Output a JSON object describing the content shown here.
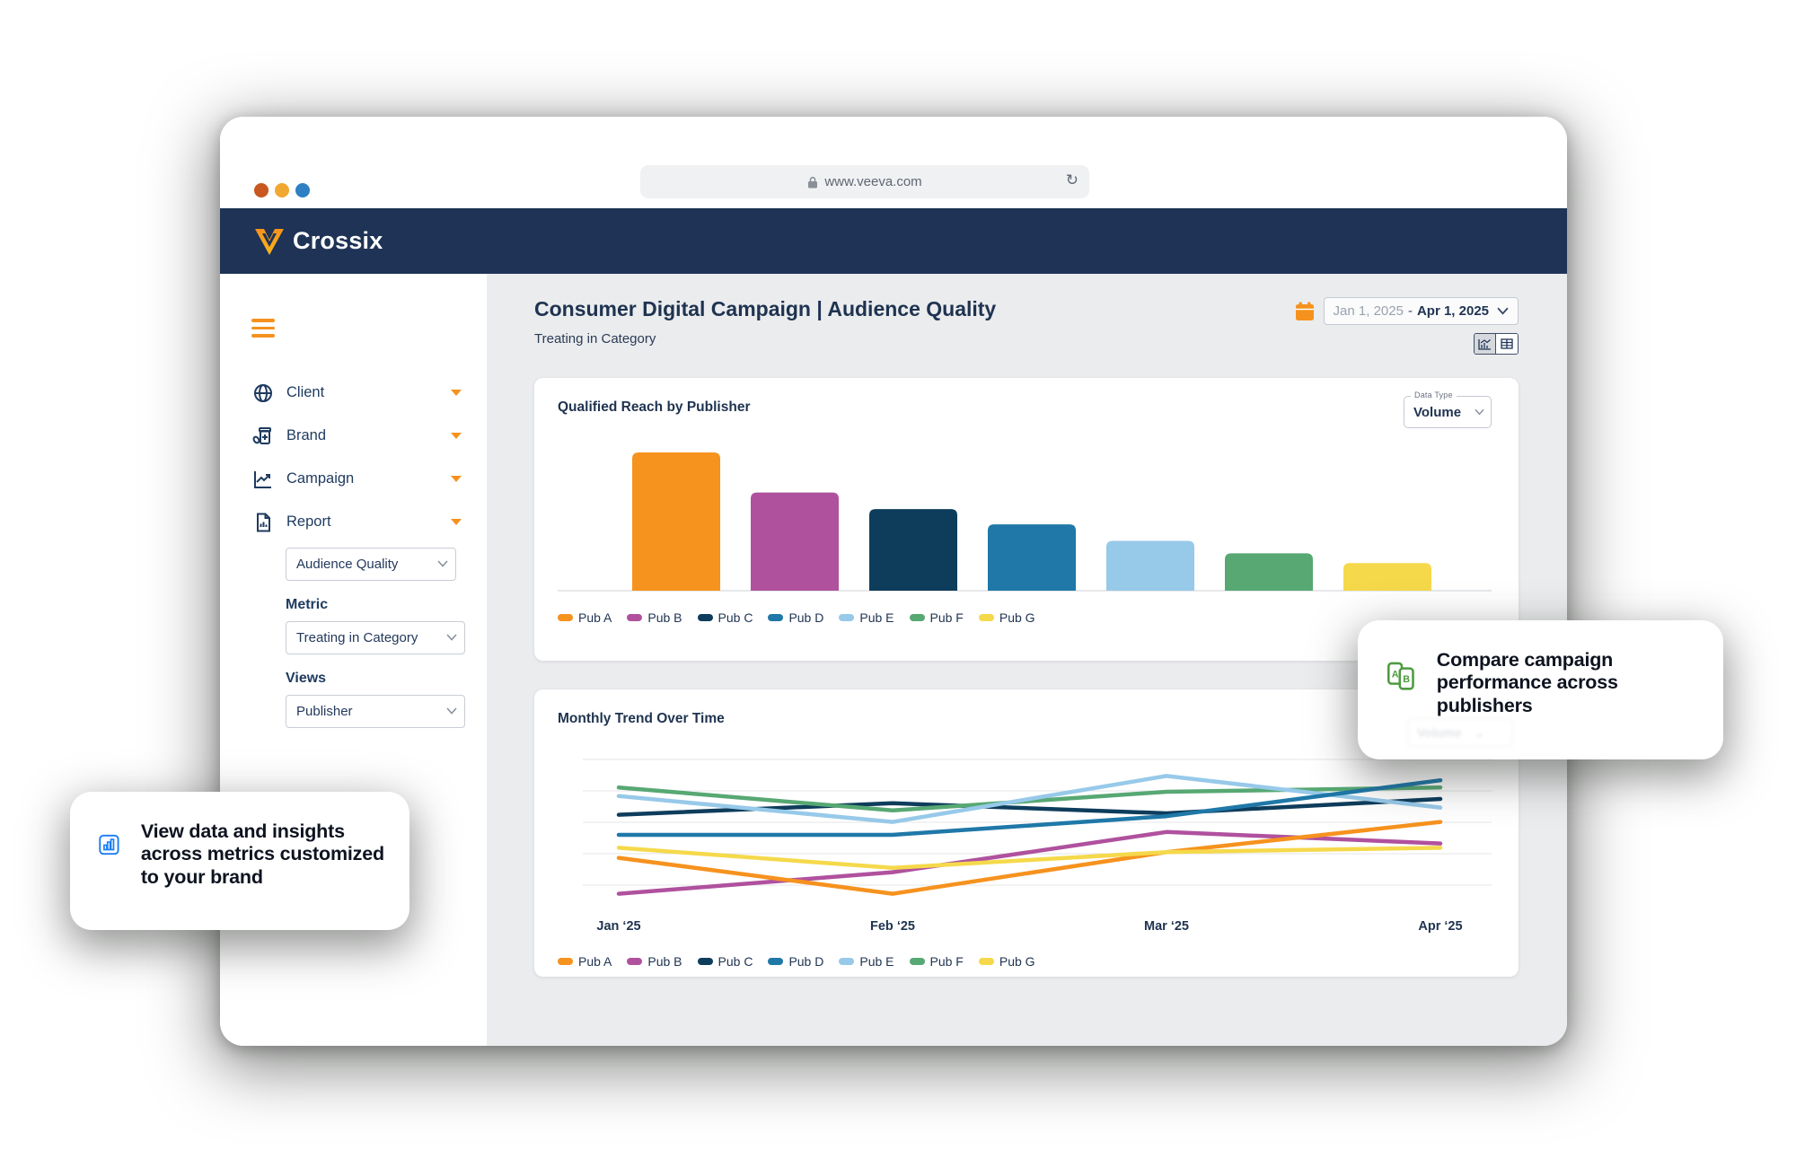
{
  "browser": {
    "url": "www.veeva.com",
    "brand": "Crossix"
  },
  "sidebar": {
    "items": [
      {
        "label": "Client",
        "icon": "globe-icon"
      },
      {
        "label": "Brand",
        "icon": "pill-bottle-icon"
      },
      {
        "label": "Campaign",
        "icon": "chart-line-icon"
      },
      {
        "label": "Report",
        "icon": "report-doc-icon"
      }
    ],
    "report_value": "Audience Quality",
    "metric_label": "Metric",
    "metric_value": "Treating in Category",
    "views_label": "Views",
    "views_value": "Publisher"
  },
  "main": {
    "title": "Consumer Digital Campaign | Audience Quality",
    "subtitle": "Treating in Category",
    "date_start": "Jan 1, 2025",
    "date_sep": "-",
    "date_end": "Apr 1, 2025",
    "card1_title": "Qualified Reach by Publisher",
    "data_type_label": "Data Type",
    "data_type_value": "Volume",
    "card2_title": "Monthly Trend Over Time"
  },
  "publishers": [
    {
      "name": "Pub A",
      "color": "#F6921E"
    },
    {
      "name": "Pub B",
      "color": "#B0519E"
    },
    {
      "name": "Pub C",
      "color": "#0E3D5C"
    },
    {
      "name": "Pub D",
      "color": "#1F78A8"
    },
    {
      "name": "Pub E",
      "color": "#97C9E9"
    },
    {
      "name": "Pub F",
      "color": "#57A873"
    },
    {
      "name": "Pub G",
      "color": "#F5D94B"
    }
  ],
  "chart_data": [
    {
      "type": "bar",
      "title": "Qualified Reach by Publisher",
      "categories": [
        "Pub A",
        "Pub B",
        "Pub C",
        "Pub D",
        "Pub E",
        "Pub F",
        "Pub G"
      ],
      "values": [
        100,
        71,
        59,
        48,
        36,
        27,
        20
      ],
      "xlabel": "",
      "ylabel": "",
      "ylim": [
        0,
        110
      ],
      "axis_labels_shown": false,
      "legend_position": "bottom"
    },
    {
      "type": "line",
      "title": "Monthly Trend Over Time",
      "x": [
        "Jan ‘25",
        "Feb ‘25",
        "Mar ‘25",
        "Apr ‘25"
      ],
      "series": [
        {
          "name": "Pub A",
          "color": "#F6921E",
          "values": [
            29,
            4,
            33,
            54
          ]
        },
        {
          "name": "Pub B",
          "color": "#B0519E",
          "values": [
            4,
            19,
            47,
            39
          ]
        },
        {
          "name": "Pub C",
          "color": "#0E3D5C",
          "values": [
            59,
            67,
            60,
            70
          ]
        },
        {
          "name": "Pub D",
          "color": "#1F78A8",
          "values": [
            45,
            45,
            58,
            83
          ]
        },
        {
          "name": "Pub E",
          "color": "#97C9E9",
          "values": [
            72,
            54,
            86,
            64
          ]
        },
        {
          "name": "Pub F",
          "color": "#57A873",
          "values": [
            78,
            62,
            75,
            78
          ]
        },
        {
          "name": "Pub G",
          "color": "#F5D94B",
          "values": [
            36,
            22,
            33,
            36
          ]
        }
      ],
      "draw_order": [
        "Pub B",
        "Pub A",
        "Pub G",
        "Pub C",
        "Pub F",
        "Pub E",
        "Pub D"
      ],
      "ylim": [
        0,
        100
      ],
      "grid": true,
      "legend_position": "bottom"
    }
  ],
  "callouts": {
    "left": {
      "text": "View data and insights across metrics customized to your brand",
      "icon": "bar-chart-icon"
    },
    "right": {
      "text": "Compare campaign performance across publishers",
      "icon": "ab-compare-icon"
    }
  },
  "colors": {
    "accent_orange": "#F5921E",
    "header_navy": "#1E3355",
    "callout_blue": "#1B7DF5",
    "callout_green": "#4E9B40",
    "traffic_1": "#C8581F",
    "traffic_2": "#F0A830",
    "traffic_3": "#2E80C3"
  }
}
